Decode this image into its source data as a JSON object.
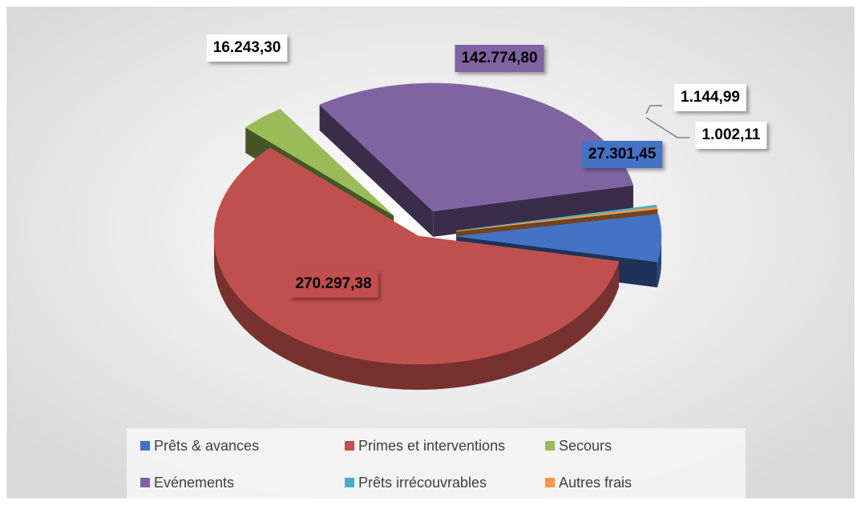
{
  "chart_data": {
    "type": "pie",
    "categories": [
      "Prêts & avances",
      "Primes et interventions",
      "Secours",
      "Evénements",
      "Prêts irrécouvrables",
      "Autres frais"
    ],
    "values": [
      27301.45,
      270297.38,
      16243.3,
      142774.8,
      1144.99,
      1002.11
    ],
    "value_labels": [
      "27.301,45",
      "270.297,38",
      "16.243,30",
      "142.774,80",
      "1.144,99",
      "1.002,11"
    ],
    "colors": [
      "#4472c4",
      "#c0504d",
      "#9bbb59",
      "#8064a2",
      "#4bacc6",
      "#f79646"
    ],
    "legend": "bottom"
  }
}
